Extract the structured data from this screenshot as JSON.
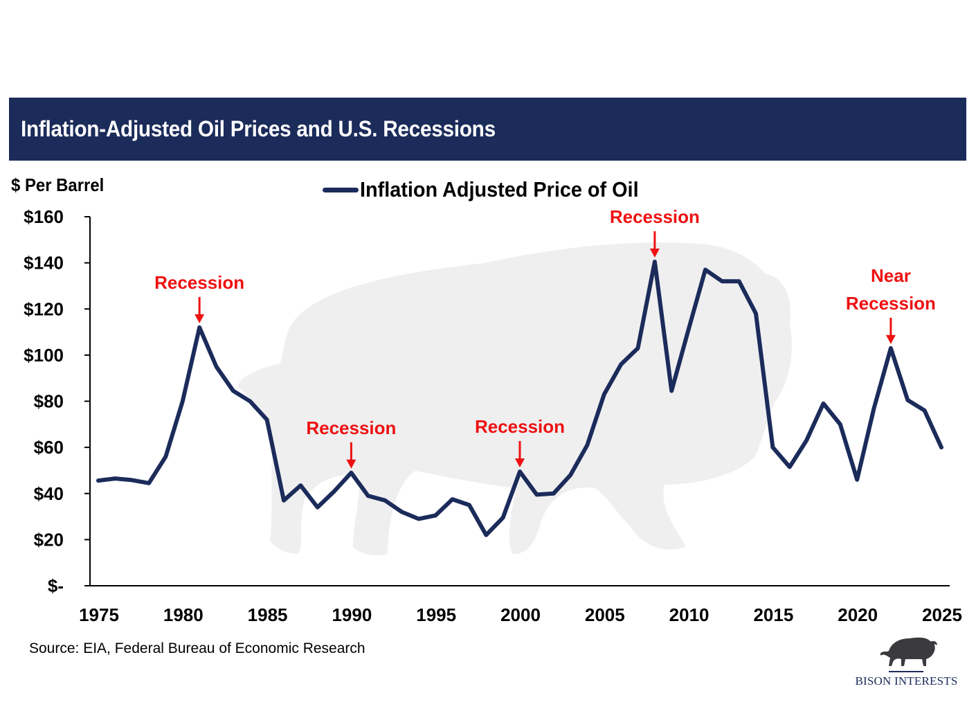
{
  "header": {
    "title": "Inflation-Adjusted Oil Prices and U.S. Recessions"
  },
  "footer": {
    "source": "Source: EIA, Federal Bureau of Economic Research",
    "logo_text": "BISON INTERESTS",
    "logo_icon": "bison-icon"
  },
  "colors": {
    "header_bg": "#1b2b5a",
    "series_line": "#1b2b5a",
    "annotation": "#ee1111",
    "watermark": "#eeeeef"
  },
  "chart_data": {
    "type": "line",
    "title": "Inflation-Adjusted Oil Prices and U.S. Recessions",
    "ylabel": "$ Per Barrel",
    "xlabel": "",
    "ylim": [
      0,
      160
    ],
    "xlim": [
      1975,
      2025
    ],
    "grid": false,
    "legend": {
      "position": "top-center",
      "entries": [
        "Inflation Adjusted Price of Oil"
      ]
    },
    "y_ticks": [
      {
        "value": 0,
        "label": "$-"
      },
      {
        "value": 20,
        "label": "$20"
      },
      {
        "value": 40,
        "label": "$40"
      },
      {
        "value": 60,
        "label": "$60"
      },
      {
        "value": 80,
        "label": "$80"
      },
      {
        "value": 100,
        "label": "$100"
      },
      {
        "value": 120,
        "label": "$120"
      },
      {
        "value": 140,
        "label": "$140"
      },
      {
        "value": 160,
        "label": "$160"
      }
    ],
    "x_ticks": [
      {
        "value": 1975,
        "label": "1975"
      },
      {
        "value": 1980,
        "label": "1980"
      },
      {
        "value": 1985,
        "label": "1985"
      },
      {
        "value": 1990,
        "label": "1990"
      },
      {
        "value": 1995,
        "label": "1995"
      },
      {
        "value": 2000,
        "label": "2000"
      },
      {
        "value": 2005,
        "label": "2005"
      },
      {
        "value": 2010,
        "label": "2010"
      },
      {
        "value": 2015,
        "label": "2015"
      },
      {
        "value": 2020,
        "label": "2020"
      },
      {
        "value": 2025,
        "label": "2025"
      }
    ],
    "series": [
      {
        "name": "Inflation Adjusted Price of Oil",
        "x": [
          1975,
          1976,
          1977,
          1978,
          1979,
          1980,
          1981,
          1982,
          1983,
          1984,
          1985,
          1986,
          1987,
          1988,
          1989,
          1990,
          1991,
          1992,
          1993,
          1994,
          1995,
          1996,
          1997,
          1998,
          1999,
          2000,
          2001,
          2002,
          2003,
          2004,
          2005,
          2006,
          2007,
          2008,
          2009,
          2010,
          2011,
          2012,
          2013,
          2014,
          2015,
          2016,
          2017,
          2018,
          2019,
          2020,
          2021,
          2022,
          2023,
          2024,
          2025
        ],
        "values": [
          45.6,
          46.5,
          45.8,
          44.5,
          56,
          80,
          112,
          95,
          84.5,
          80,
          72,
          37,
          43.5,
          34,
          41,
          49,
          39,
          37,
          32,
          29,
          30.5,
          37.5,
          35,
          22,
          29.5,
          49.5,
          39.5,
          40,
          48,
          61,
          83,
          96,
          103,
          140.5,
          84.5,
          111,
          137,
          132,
          132,
          118,
          60,
          51.5,
          63,
          79,
          70,
          46,
          77,
          103,
          80.5,
          76,
          60
        ]
      }
    ],
    "annotations": [
      {
        "x": 1981,
        "value": 112,
        "lines": [
          "Recession"
        ]
      },
      {
        "x": 1990,
        "value": 49,
        "lines": [
          "Recession"
        ]
      },
      {
        "x": 2000,
        "value": 49.5,
        "lines": [
          "Recession"
        ]
      },
      {
        "x": 2008,
        "value": 140.5,
        "lines": [
          "Recession"
        ]
      },
      {
        "x": 2022,
        "value": 103,
        "lines": [
          "Near",
          "Recession"
        ]
      }
    ]
  }
}
